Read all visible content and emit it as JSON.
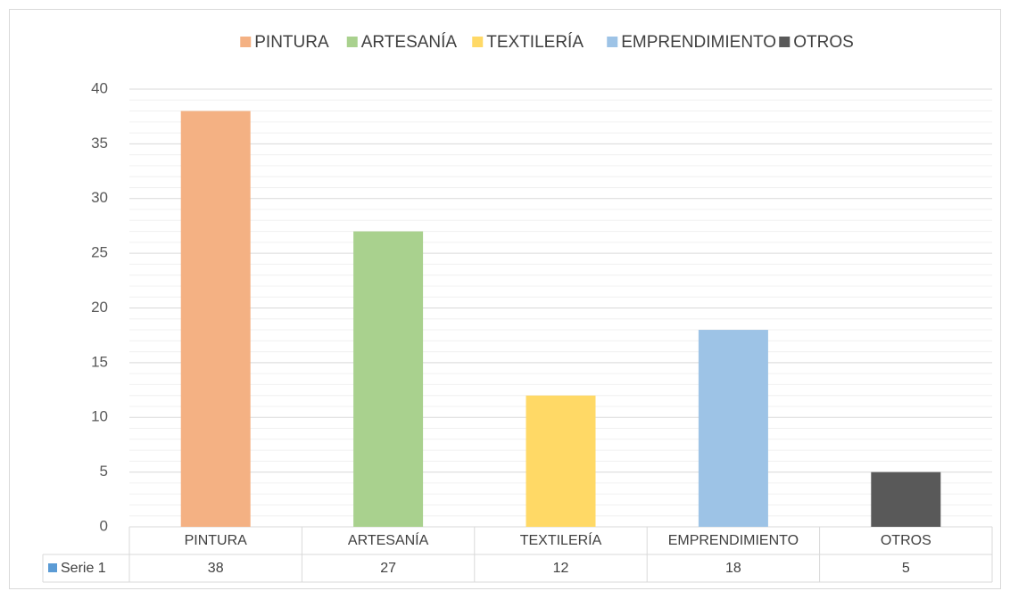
{
  "chart_data": {
    "type": "bar",
    "categories": [
      "PINTURA",
      "ARTESANÍA",
      "TEXTILERÍA",
      "EMPRENDIMIENTO",
      "OTROS"
    ],
    "series": [
      {
        "name": "Serie 1",
        "color": "#5b9bd5",
        "values": [
          38,
          27,
          12,
          18,
          5
        ]
      }
    ],
    "colors": [
      "#f4b183",
      "#a9d18e",
      "#ffd966",
      "#9dc3e6",
      "#595959"
    ],
    "ylim": [
      0,
      40
    ],
    "yticks": [
      0,
      5,
      10,
      15,
      20,
      25,
      30,
      35,
      40
    ],
    "minor_yticks": [
      1,
      2,
      3,
      4,
      6,
      7,
      8,
      9,
      11,
      12,
      13,
      14,
      16,
      17,
      18,
      19,
      21,
      22,
      23,
      24,
      26,
      27,
      28,
      29,
      31,
      32,
      33,
      34,
      36,
      37,
      38,
      39
    ],
    "grid": true,
    "legend": "top",
    "data_table": true
  }
}
